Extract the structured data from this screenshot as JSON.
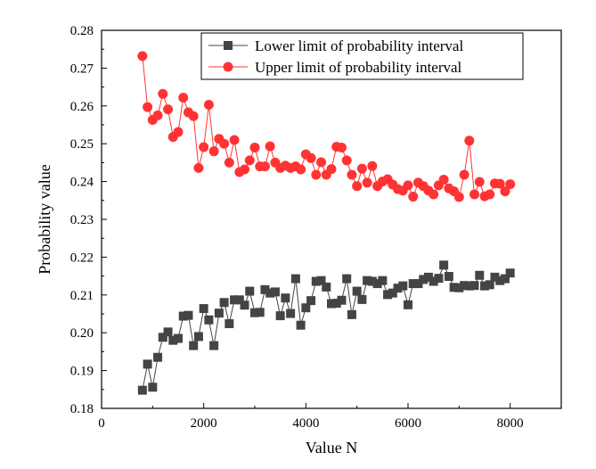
{
  "chart_data": {
    "type": "line",
    "title": "",
    "xlabel": "Value N",
    "ylabel": "Probability value",
    "xlim": [
      0,
      9000
    ],
    "ylim": [
      0.18,
      0.28
    ],
    "xticks": [
      0,
      2000,
      4000,
      6000,
      8000
    ],
    "xtick_labels": [
      "0",
      "2000",
      "4000",
      "6000",
      "8000"
    ],
    "yticks": [
      0.18,
      0.19,
      0.2,
      0.21,
      0.22,
      0.23,
      0.24,
      0.25,
      0.26,
      0.27,
      0.28
    ],
    "ytick_labels": [
      "0.18",
      "0.19",
      "0.20",
      "0.21",
      "0.22",
      "0.23",
      "0.24",
      "0.25",
      "0.26",
      "0.27",
      "0.28"
    ],
    "grid": false,
    "legend_position": "top-right",
    "x": [
      800,
      900,
      1000,
      1100,
      1200,
      1300,
      1400,
      1500,
      1600,
      1700,
      1800,
      1900,
      2000,
      2100,
      2200,
      2300,
      2400,
      2500,
      2600,
      2700,
      2800,
      2900,
      3000,
      3100,
      3200,
      3300,
      3400,
      3500,
      3600,
      3700,
      3800,
      3900,
      4000,
      4100,
      4200,
      4300,
      4400,
      4500,
      4600,
      4700,
      4800,
      4900,
      5000,
      5100,
      5200,
      5300,
      5400,
      5500,
      5600,
      5700,
      5800,
      5900,
      6000,
      6100,
      6200,
      6300,
      6400,
      6500,
      6600,
      6700,
      6800,
      6900,
      7000,
      7100,
      7200,
      7300,
      7400,
      7500,
      7600,
      7700,
      7800,
      7900,
      8000
    ],
    "series": [
      {
        "name": "Lower limit of probability interval",
        "color": "#444444",
        "marker": "square",
        "values": [
          0.1848,
          0.1917,
          0.1856,
          0.1935,
          0.1988,
          0.2002,
          0.198,
          0.1985,
          0.2044,
          0.2046,
          0.1966,
          0.199,
          0.2064,
          0.2034,
          0.1966,
          0.2052,
          0.208,
          0.2024,
          0.2087,
          0.2087,
          0.2073,
          0.211,
          0.2053,
          0.2054,
          0.2114,
          0.2105,
          0.2108,
          0.2045,
          0.2092,
          0.2051,
          0.2143,
          0.202,
          0.2066,
          0.2085,
          0.2136,
          0.2138,
          0.2121,
          0.2077,
          0.2078,
          0.2086,
          0.2143,
          0.2048,
          0.211,
          0.2088,
          0.2138,
          0.2136,
          0.213,
          0.2138,
          0.2101,
          0.2105,
          0.2118,
          0.2124,
          0.2074,
          0.213,
          0.213,
          0.2141,
          0.2147,
          0.2136,
          0.2144,
          0.2179,
          0.2149,
          0.212,
          0.2119,
          0.2125,
          0.2124,
          0.2125,
          0.2152,
          0.2124,
          0.2127,
          0.2147,
          0.2138,
          0.2143,
          0.2158
        ]
      },
      {
        "name": "Upper limit of probability interval",
        "color": "#ff3333",
        "marker": "circle",
        "values": [
          0.2732,
          0.2597,
          0.2563,
          0.2575,
          0.2632,
          0.2591,
          0.2518,
          0.2531,
          0.2622,
          0.2583,
          0.2573,
          0.2436,
          0.2491,
          0.2603,
          0.248,
          0.2513,
          0.25,
          0.245,
          0.251,
          0.2425,
          0.2432,
          0.2456,
          0.249,
          0.244,
          0.244,
          0.2493,
          0.245,
          0.2436,
          0.2442,
          0.2436,
          0.244,
          0.2432,
          0.2472,
          0.2462,
          0.2418,
          0.2451,
          0.2418,
          0.2433,
          0.2492,
          0.249,
          0.2456,
          0.2418,
          0.2388,
          0.2434,
          0.2397,
          0.2441,
          0.2388,
          0.24,
          0.2406,
          0.2392,
          0.238,
          0.2376,
          0.239,
          0.236,
          0.2397,
          0.2388,
          0.2376,
          0.2366,
          0.239,
          0.2405,
          0.2382,
          0.2374,
          0.2359,
          0.2418,
          0.2508,
          0.2366,
          0.2399,
          0.2361,
          0.2366,
          0.2395,
          0.2394,
          0.2374,
          0.2393
        ]
      }
    ]
  }
}
